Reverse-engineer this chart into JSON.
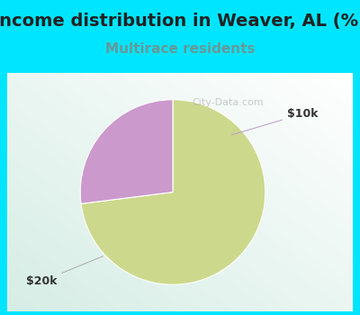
{
  "title": "Income distribution in Weaver, AL (%)",
  "subtitle": "Multirace residents",
  "slices": [
    0.73,
    0.27
  ],
  "labels": [
    "$20k",
    "$10k"
  ],
  "colors": [
    "#ccd98c",
    "#cc99cc"
  ],
  "label_colors": [
    "#333333",
    "#333333"
  ],
  "background_color": "#00e5ff",
  "chart_bg_left": "#d6ede6",
  "chart_bg_right": "#ffffff",
  "title_fontsize": 14,
  "subtitle_fontsize": 11,
  "subtitle_color": "#669999",
  "start_angle": 90,
  "watermark": "City-Data.com"
}
